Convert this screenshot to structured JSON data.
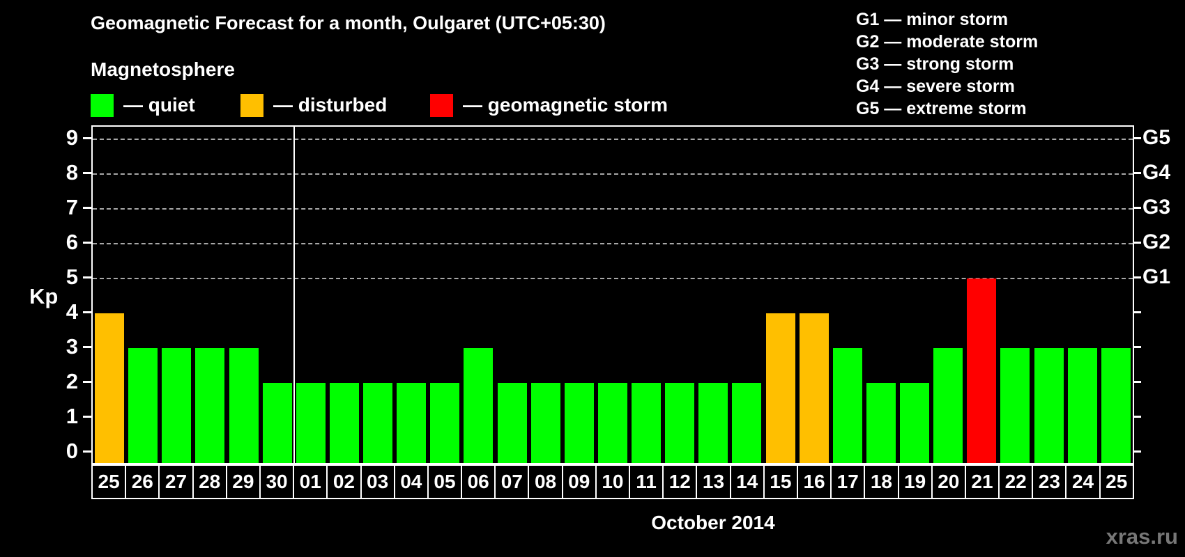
{
  "title": "Geomagnetic Forecast for a month, Oulgaret (UTC+05:30)",
  "legend": {
    "heading": "Magnetosphere",
    "items": [
      {
        "status": "quiet",
        "label": "— quiet",
        "color": "#00ff00"
      },
      {
        "status": "disturbed",
        "label": "— disturbed",
        "color": "#ffbf00"
      },
      {
        "status": "storm",
        "label": "— geomagnetic storm",
        "color": "#ff0000"
      }
    ]
  },
  "storm_scale_legend": [
    "G1 — minor storm",
    "G2 — moderate storm",
    "G3 — strong storm",
    "G4 — severe storm",
    "G5 — extreme storm"
  ],
  "watermark": "xras.ru",
  "chart_data": {
    "type": "bar",
    "title": "Geomagnetic Forecast for a month, Oulgaret (UTC+05:30)",
    "xlabel": "October 2014",
    "ylabel": "Kp",
    "ylim": [
      0,
      9
    ],
    "y_ticks": [
      0,
      1,
      2,
      3,
      4,
      5,
      6,
      7,
      8,
      9
    ],
    "grid": "dashed horizontal lines at Kp 5 to 9",
    "legend_position": "top",
    "right_axis": [
      {
        "kp": 5,
        "label": "G1"
      },
      {
        "kp": 6,
        "label": "G2"
      },
      {
        "kp": 7,
        "label": "G3"
      },
      {
        "kp": 8,
        "label": "G4"
      },
      {
        "kp": 9,
        "label": "G5"
      }
    ],
    "month_boundary_after_index": 5,
    "status_colors": {
      "quiet": "#00ff00",
      "disturbed": "#ffbf00",
      "storm": "#ff0000"
    },
    "bars": [
      {
        "day": "25",
        "kp": 4,
        "status": "disturbed"
      },
      {
        "day": "26",
        "kp": 3,
        "status": "quiet"
      },
      {
        "day": "27",
        "kp": 3,
        "status": "quiet"
      },
      {
        "day": "28",
        "kp": 3,
        "status": "quiet"
      },
      {
        "day": "29",
        "kp": 3,
        "status": "quiet"
      },
      {
        "day": "30",
        "kp": 2,
        "status": "quiet"
      },
      {
        "day": "01",
        "kp": 2,
        "status": "quiet"
      },
      {
        "day": "02",
        "kp": 2,
        "status": "quiet"
      },
      {
        "day": "03",
        "kp": 2,
        "status": "quiet"
      },
      {
        "day": "04",
        "kp": 2,
        "status": "quiet"
      },
      {
        "day": "05",
        "kp": 2,
        "status": "quiet"
      },
      {
        "day": "06",
        "kp": 3,
        "status": "quiet"
      },
      {
        "day": "07",
        "kp": 2,
        "status": "quiet"
      },
      {
        "day": "08",
        "kp": 2,
        "status": "quiet"
      },
      {
        "day": "09",
        "kp": 2,
        "status": "quiet"
      },
      {
        "day": "10",
        "kp": 2,
        "status": "quiet"
      },
      {
        "day": "11",
        "kp": 2,
        "status": "quiet"
      },
      {
        "day": "12",
        "kp": 2,
        "status": "quiet"
      },
      {
        "day": "13",
        "kp": 2,
        "status": "quiet"
      },
      {
        "day": "14",
        "kp": 2,
        "status": "quiet"
      },
      {
        "day": "15",
        "kp": 4,
        "status": "disturbed"
      },
      {
        "day": "16",
        "kp": 4,
        "status": "disturbed"
      },
      {
        "day": "17",
        "kp": 3,
        "status": "quiet"
      },
      {
        "day": "18",
        "kp": 2,
        "status": "quiet"
      },
      {
        "day": "19",
        "kp": 2,
        "status": "quiet"
      },
      {
        "day": "20",
        "kp": 3,
        "status": "quiet"
      },
      {
        "day": "21",
        "kp": 5,
        "status": "storm"
      },
      {
        "day": "22",
        "kp": 3,
        "status": "quiet"
      },
      {
        "day": "23",
        "kp": 3,
        "status": "quiet"
      },
      {
        "day": "24",
        "kp": 3,
        "status": "quiet"
      },
      {
        "day": "25",
        "kp": 3,
        "status": "quiet"
      }
    ]
  }
}
